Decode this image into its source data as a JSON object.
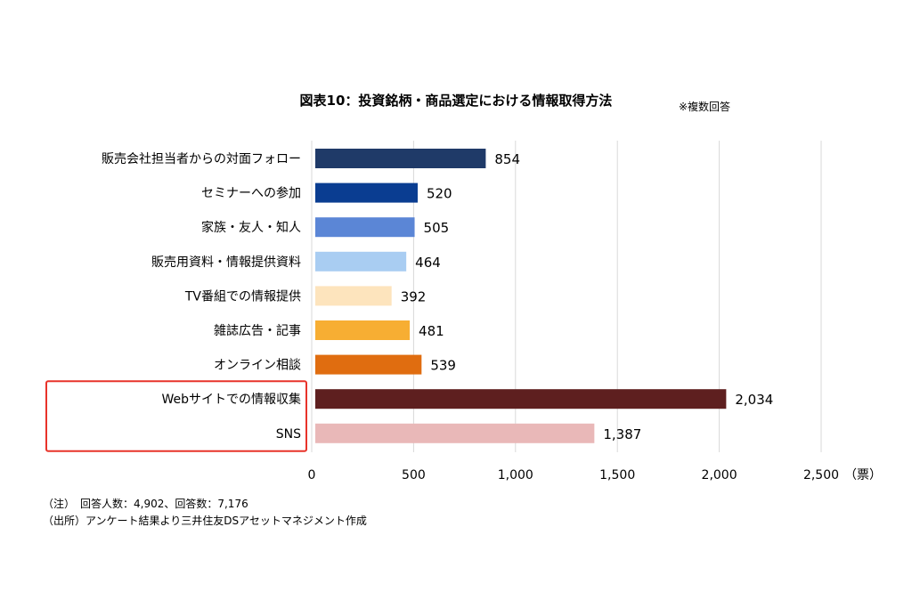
{
  "title": "図表10：投資銘柄・商品選定における情報取得方法",
  "title_note": "※複数回答",
  "x_unit": "（票）",
  "notes": [
    "（注）　回答人数：4,902、回答数：7,176",
    "（出所）アンケート結果より三井住友DSアセットマネジメント作成"
  ],
  "chart_data": {
    "type": "bar",
    "orientation": "horizontal",
    "title": "図表10：投資銘柄・商品選定における情報取得方法",
    "categories": [
      "販売会社担当者からの対面フォロー",
      "セミナーへの参加",
      "家族・友人・知人",
      "販売用資料・情報提供資料",
      "TV番組での情報提供",
      "雑誌広告・記事",
      "オンライン相談",
      "Webサイトでの情報収集",
      "SNS"
    ],
    "values": [
      854,
      520,
      505,
      464,
      392,
      481,
      539,
      2034,
      1387
    ],
    "value_labels": [
      "854",
      "520",
      "505",
      "464",
      "392",
      "481",
      "539",
      "2,034",
      "1,387"
    ],
    "bar_colors": [
      "#1f3a68",
      "#0a3d91",
      "#5b86d6",
      "#a9cdf2",
      "#fde4bd",
      "#f7ae33",
      "#e06d10",
      "#5e1f1f",
      "#e9b8b8"
    ],
    "xlim": [
      0,
      2500
    ],
    "xticks": [
      0,
      500,
      1000,
      1500,
      2000,
      2500
    ],
    "xtick_labels": [
      "0",
      "500",
      "1,000",
      "1,500",
      "2,000",
      "2,500"
    ],
    "grid": true,
    "highlighted_categories": [
      "Webサイトでの情報収集",
      "SNS"
    ],
    "highlight_color": "#e8332a"
  }
}
